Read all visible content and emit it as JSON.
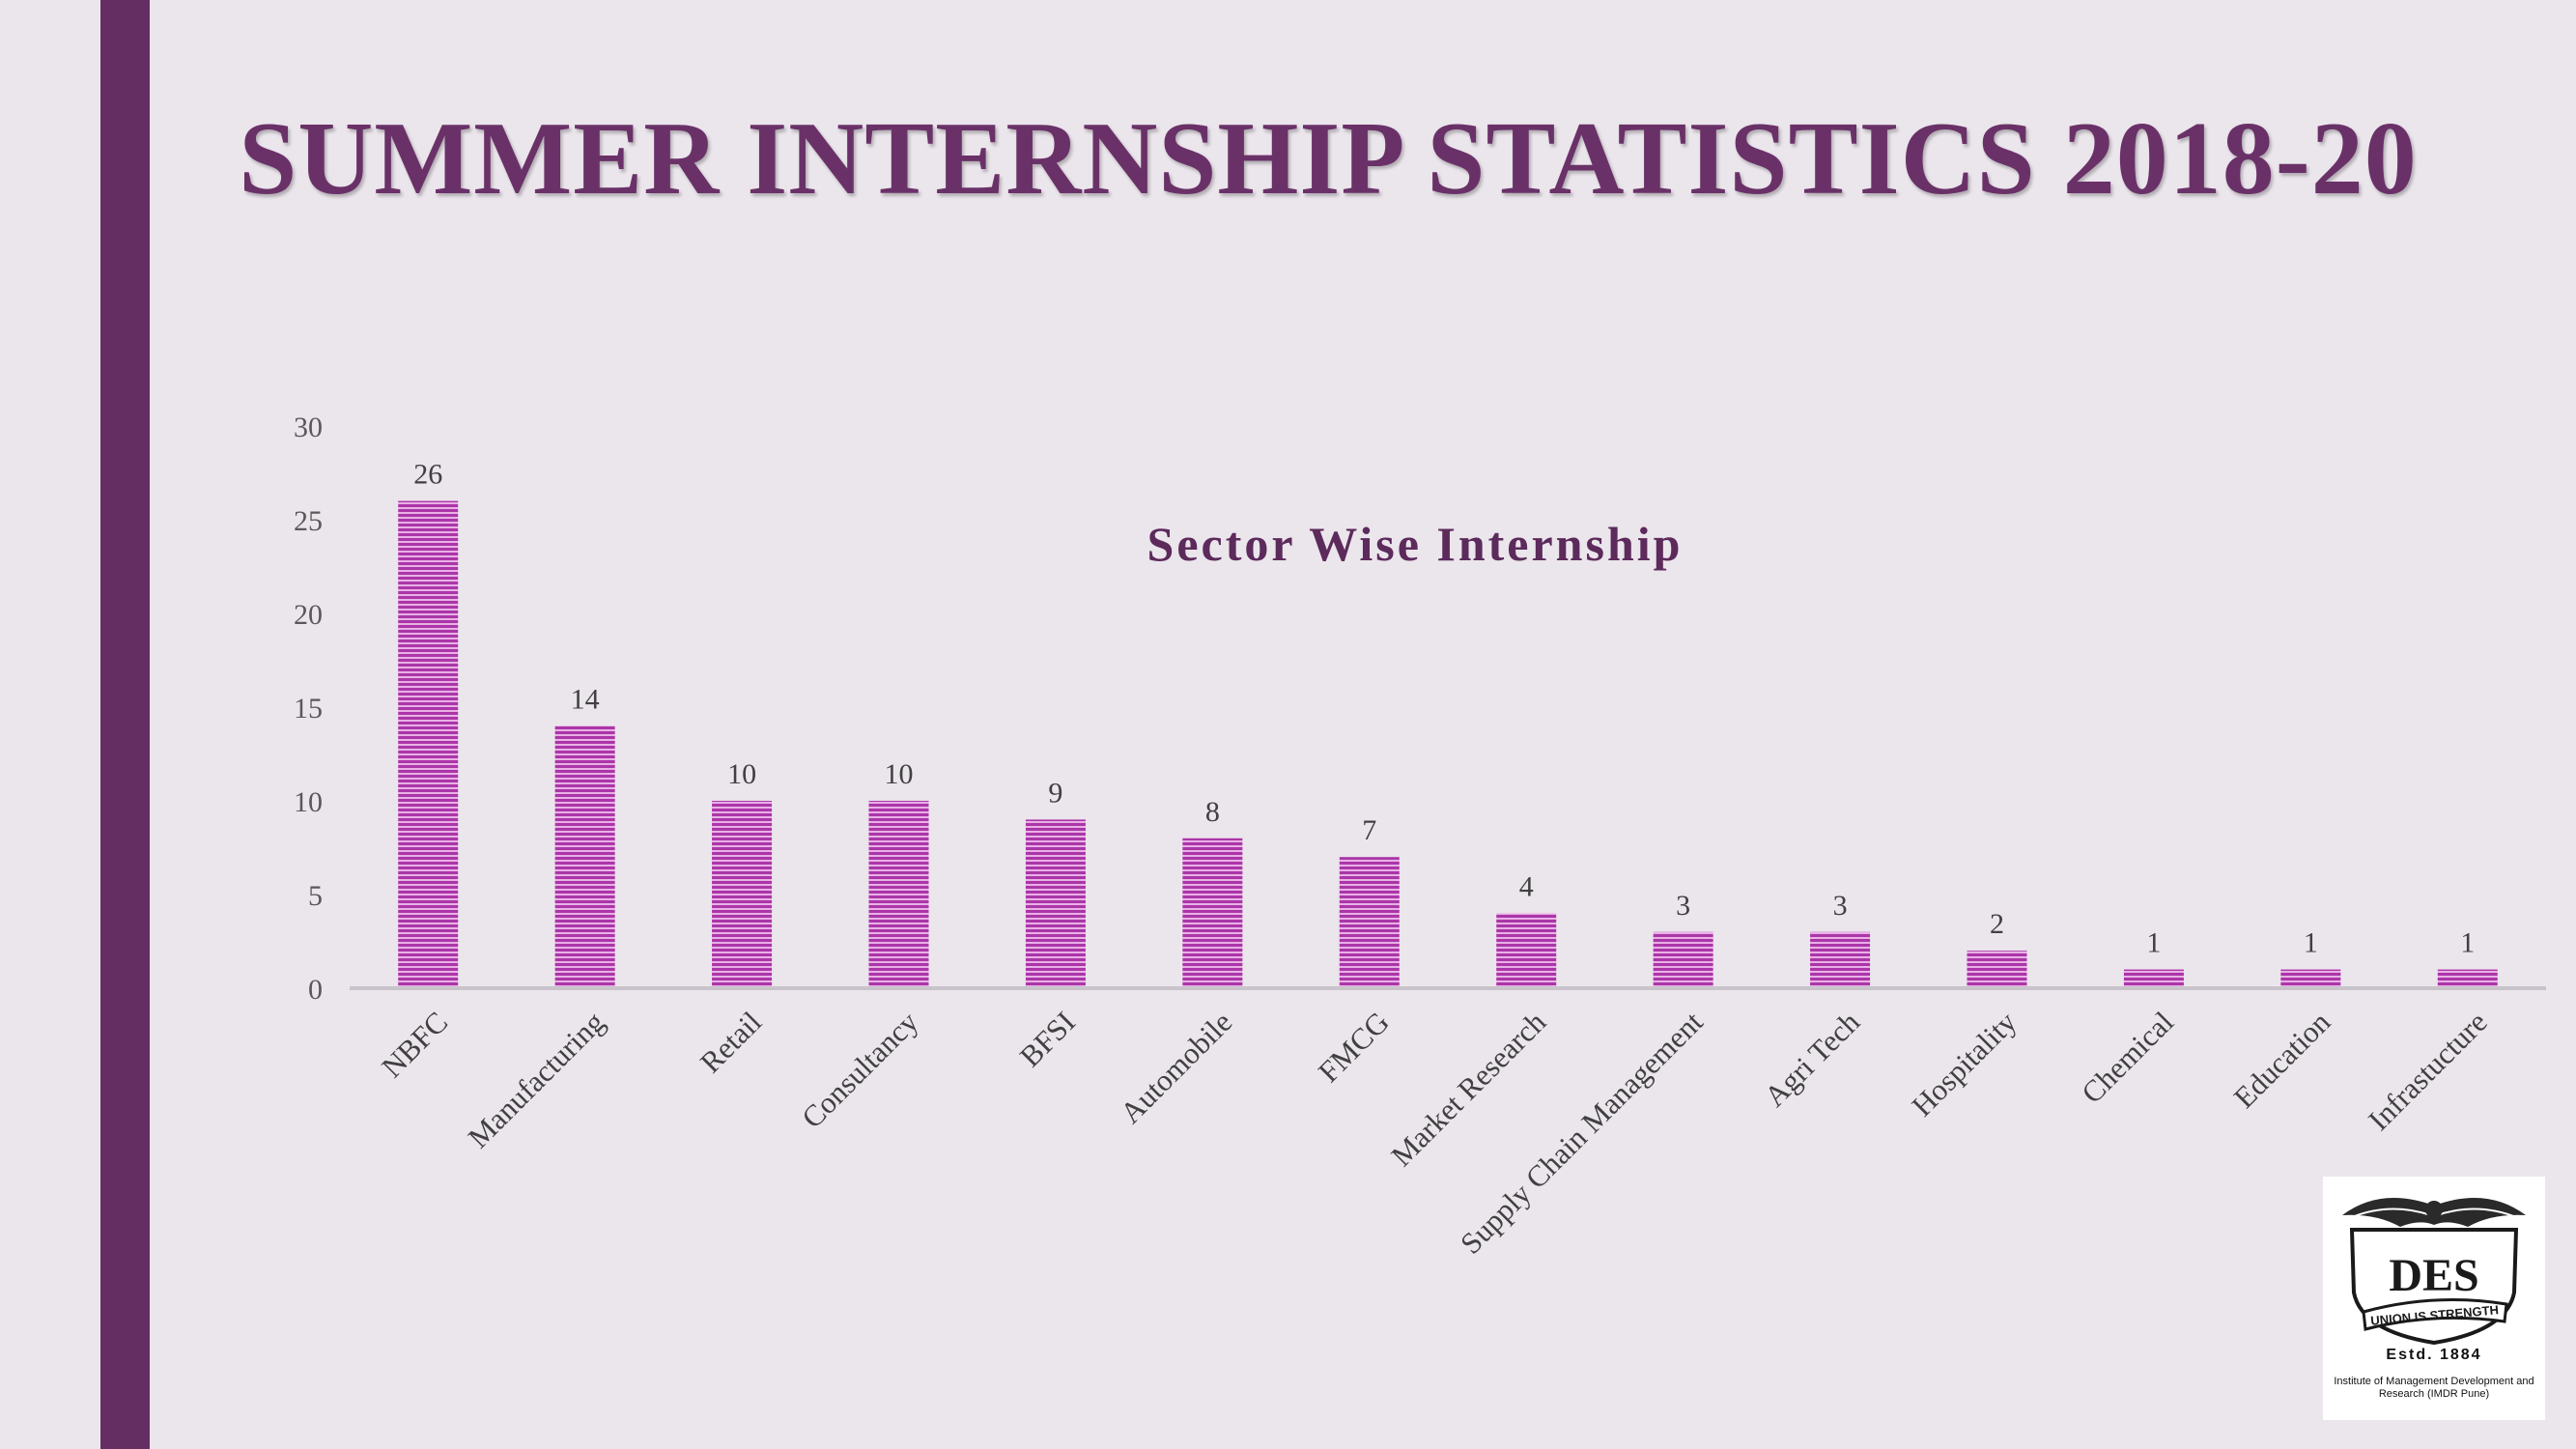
{
  "page": {
    "title": "SUMMER INTERNSHIP STATISTICS 2018-20",
    "accent_color": "#642e63",
    "background_color": "#ebe5ec"
  },
  "chart_data": {
    "type": "bar",
    "title": "Sector Wise Internship",
    "xlabel": "",
    "ylabel": "",
    "categories": [
      "NBFC",
      "Manufacturing",
      "Retail",
      "Consultancy",
      "BFSI",
      "Automobile",
      "FMCG",
      "Market Research",
      "Supply Chain Management",
      "Agri Tech",
      "Hospitality",
      "Chemical",
      "Education",
      "Infrastucture"
    ],
    "values": [
      26,
      14,
      10,
      10,
      9,
      8,
      7,
      4,
      3,
      3,
      2,
      1,
      1,
      1
    ],
    "ylim": [
      0,
      30
    ],
    "yticks": [
      0,
      5,
      10,
      15,
      20,
      25,
      30
    ],
    "grid": false,
    "data_labels": true,
    "bar_color": "#b53fb3",
    "bar_pattern": "horizontal-stripes"
  },
  "logo": {
    "name": "institute-logo",
    "motto": "UNION IS STRENGTH",
    "estd": "Estd. 1884",
    "institute": "Institute of Management Development and Research (IMDR Pune)"
  }
}
